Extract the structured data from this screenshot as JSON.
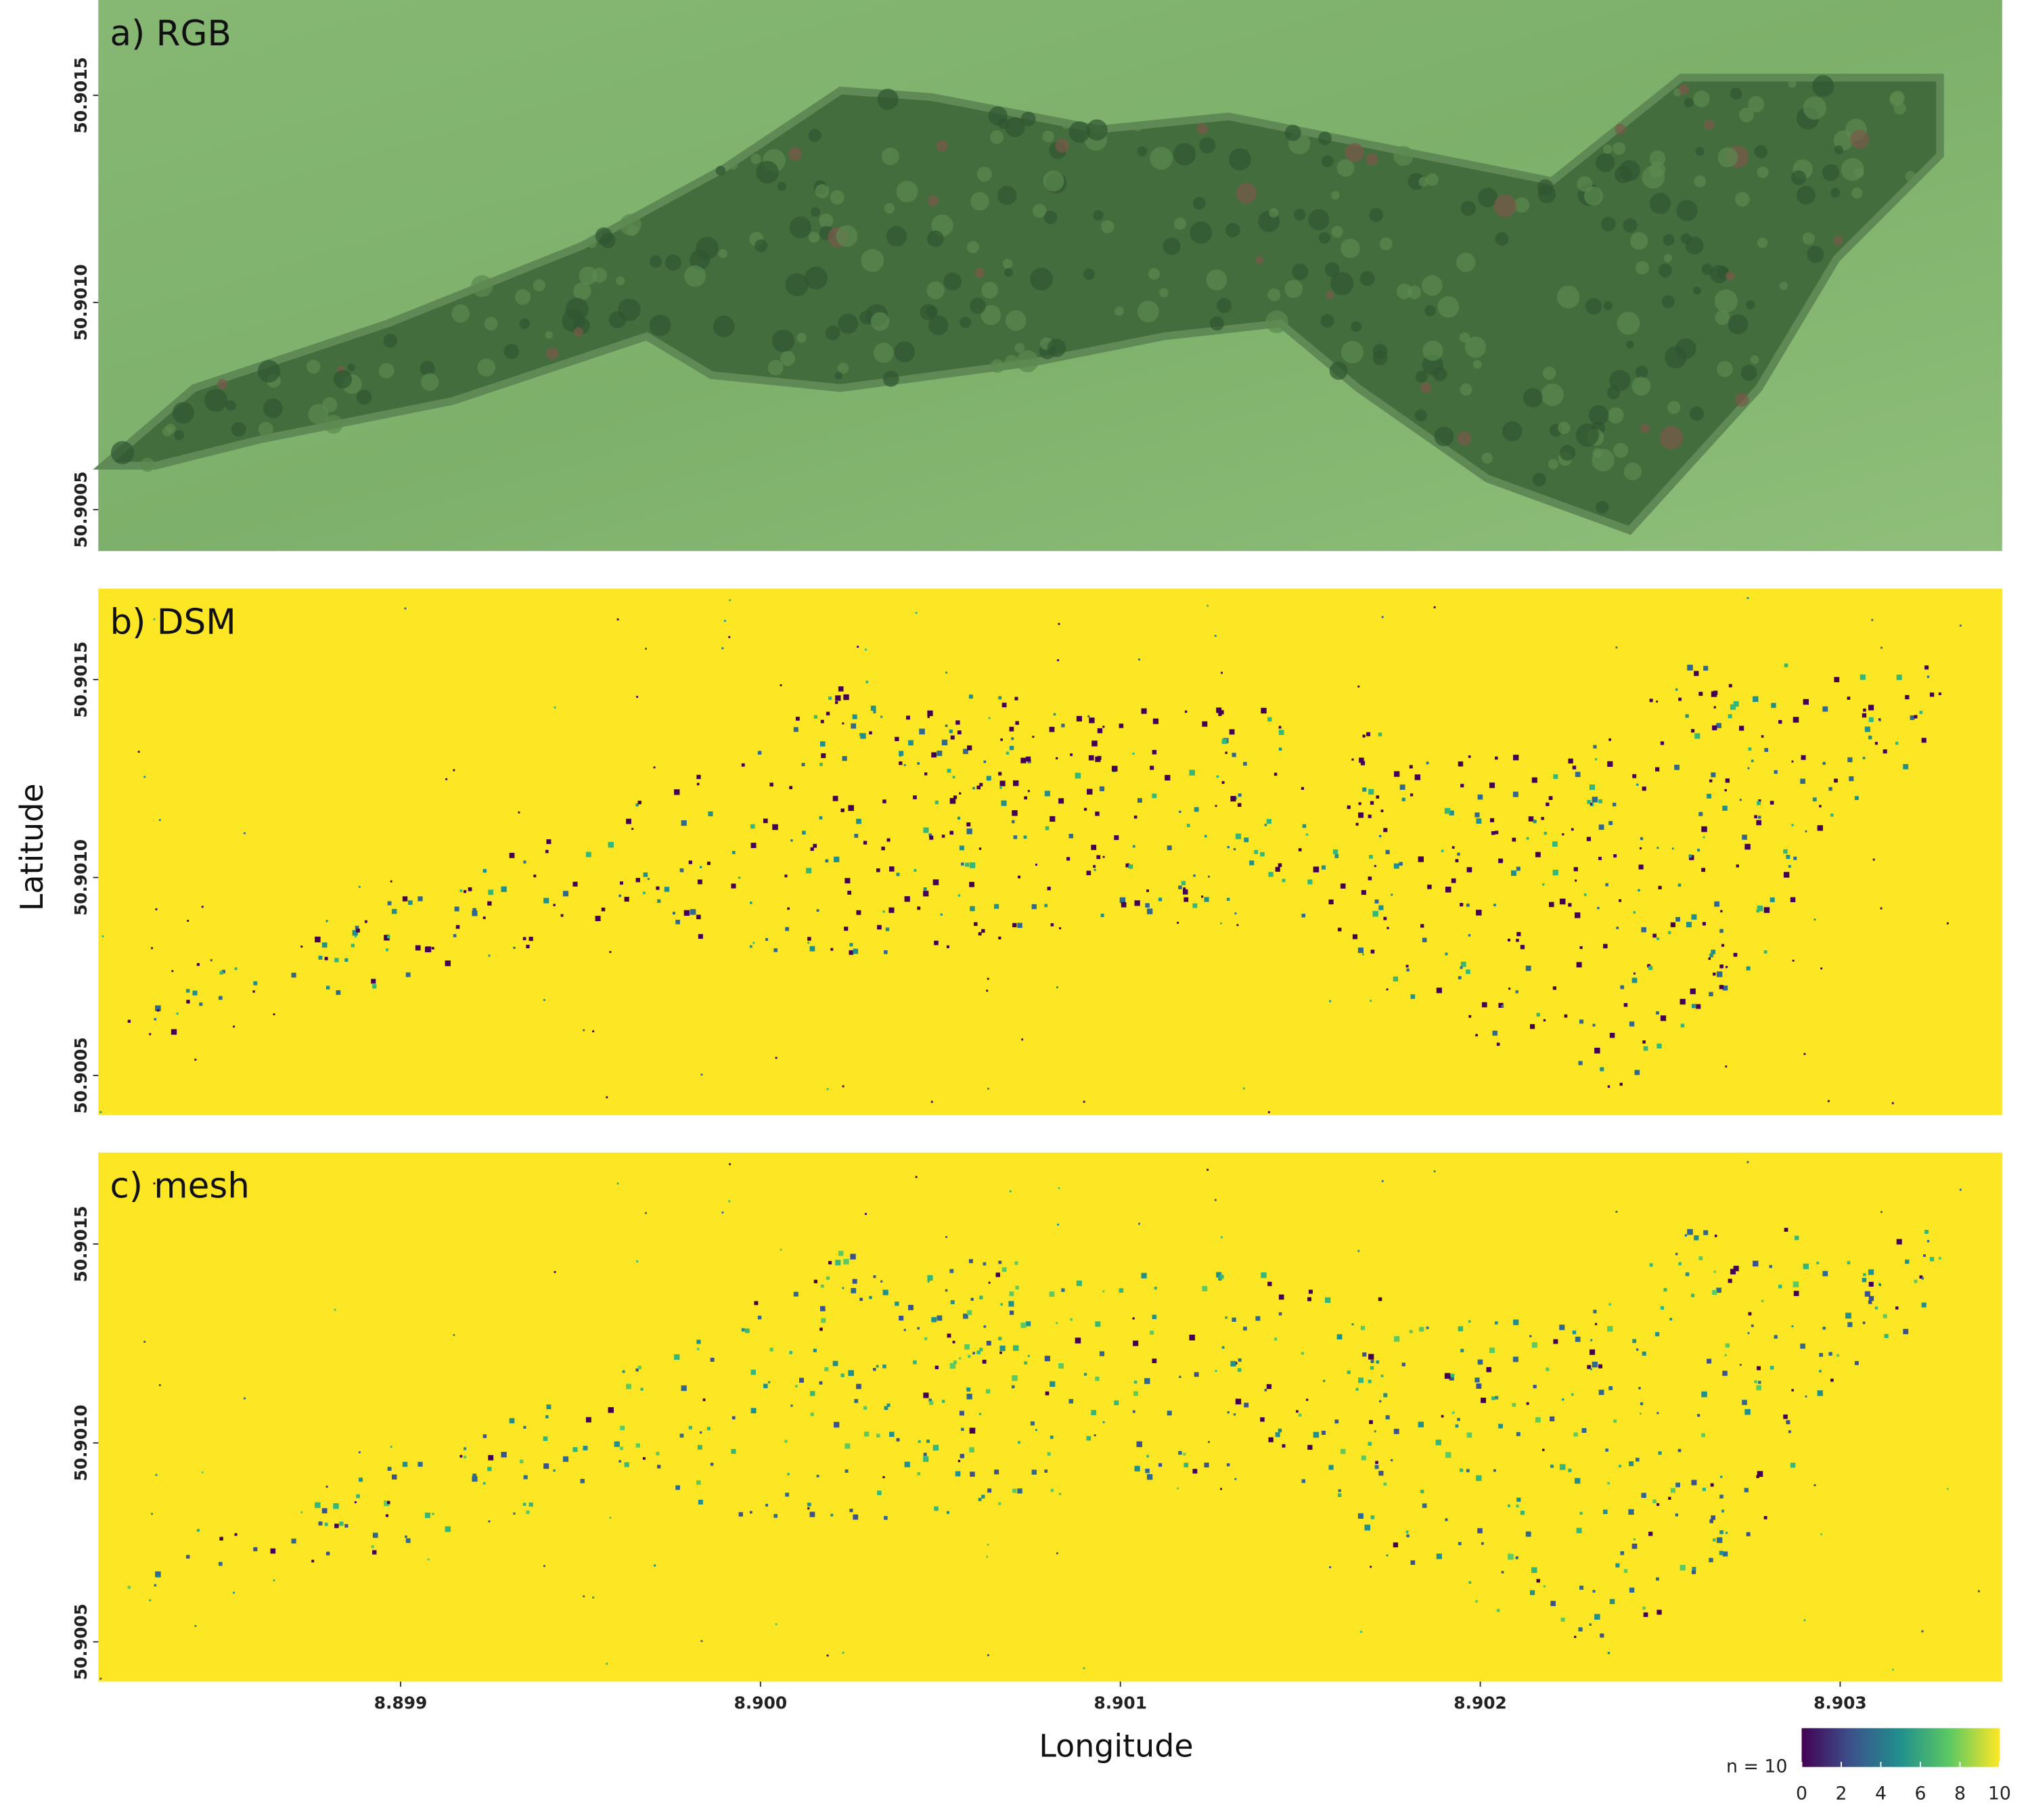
{
  "panels": [
    {
      "label": "a) RGB",
      "ylim": [
        50.9004,
        50.90173
      ],
      "yticks": [
        50.9005,
        {
          "value": 50.901,
          "label": "50.9010"
        },
        50.9015
      ]
    },
    {
      "label": "b) DSM",
      "ylim": [
        50.9004,
        50.90173
      ],
      "yticks": [
        50.9005,
        {
          "value": 50.901,
          "label": "50.9010"
        },
        50.9015
      ]
    },
    {
      "label": "c) mesh",
      "ylim": [
        50.9004,
        50.90173
      ],
      "yticks": [
        50.9005,
        {
          "value": 50.901,
          "label": "50.9010"
        },
        50.9015
      ]
    }
  ],
  "x_axis": {
    "label": "Longitude",
    "xlim": [
      8.89816,
      8.90345
    ],
    "xticks": [
      8.899,
      {
        "value": 8.9,
        "label": "8.900"
      },
      8.901,
      8.902,
      8.903
    ]
  },
  "y_axis": {
    "label": "Latitude"
  },
  "colorbar": {
    "label": "n = 10",
    "lim": [
      0,
      10
    ],
    "ticks": [
      0,
      2,
      4,
      6,
      8,
      10
    ],
    "colors": [
      "#440154",
      "#3b528b",
      "#21908d",
      "#5dc963",
      "#fde725"
    ]
  }
}
